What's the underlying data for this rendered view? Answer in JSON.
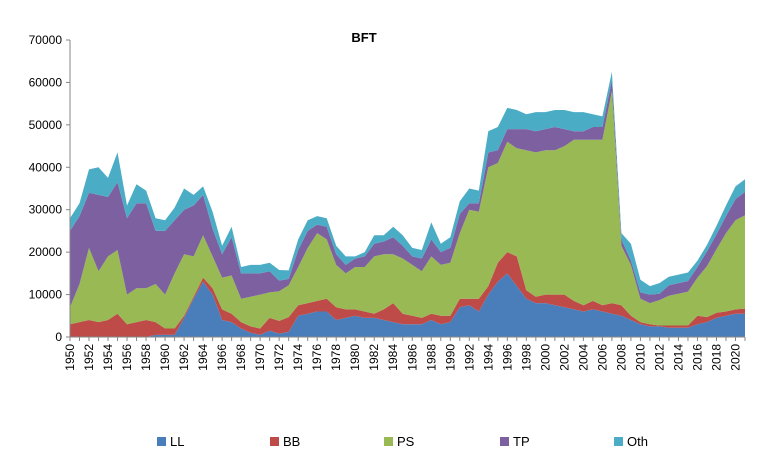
{
  "chart_data": {
    "type": "area",
    "stacked": true,
    "title": "BFT",
    "xlabel": "",
    "ylabel": "",
    "ylim": [
      0,
      70000
    ],
    "yticks": [
      0,
      10000,
      20000,
      30000,
      40000,
      50000,
      60000,
      70000
    ],
    "ytick_labels": [
      "0",
      "10000",
      "20000",
      "30000",
      "40000",
      "50000",
      "60000",
      "70000"
    ],
    "xlim": [
      1950,
      2021
    ],
    "xticks": [
      1950,
      1952,
      1954,
      1956,
      1958,
      1960,
      1962,
      1964,
      1966,
      1968,
      1970,
      1972,
      1974,
      1976,
      1978,
      1980,
      1982,
      1984,
      1986,
      1988,
      1990,
      1992,
      1994,
      1996,
      1998,
      2000,
      2002,
      2004,
      2006,
      2008,
      2010,
      2012,
      2014,
      2016,
      2018,
      2020
    ],
    "xtick_labels": [
      "1950",
      "1952",
      "1954",
      "1956",
      "1958",
      "1960",
      "1962",
      "1964",
      "1966",
      "1968",
      "1970",
      "1972",
      "1974",
      "1976",
      "1978",
      "1980",
      "1982",
      "1984",
      "1986",
      "1988",
      "1990",
      "1992",
      "1994",
      "1996",
      "1998",
      "2000",
      "2002",
      "2004",
      "2006",
      "2008",
      "2010",
      "2012",
      "2014",
      "2016",
      "2018",
      "2020"
    ],
    "grid": false,
    "legend_position": "bottom",
    "x": [
      1950,
      1951,
      1952,
      1953,
      1954,
      1955,
      1956,
      1957,
      1958,
      1959,
      1960,
      1961,
      1962,
      1963,
      1964,
      1965,
      1966,
      1967,
      1968,
      1969,
      1970,
      1971,
      1972,
      1973,
      1974,
      1975,
      1976,
      1977,
      1978,
      1979,
      1980,
      1981,
      1982,
      1983,
      1984,
      1985,
      1986,
      1987,
      1988,
      1989,
      1990,
      1991,
      1992,
      1993,
      1994,
      1995,
      1996,
      1997,
      1998,
      1999,
      2000,
      2001,
      2002,
      2003,
      2004,
      2005,
      2006,
      2007,
      2008,
      2009,
      2010,
      2011,
      2012,
      2013,
      2014,
      2015,
      2016,
      2017,
      2018,
      2019,
      2020,
      2021
    ],
    "series": [
      {
        "name": "LL",
        "color": "#4a7ebb",
        "values": [
          0,
          0,
          0,
          0,
          0,
          0,
          0,
          0,
          0,
          500,
          500,
          500,
          4500,
          9000,
          13000,
          10000,
          4000,
          3500,
          2000,
          1000,
          500,
          1500,
          800,
          1200,
          5000,
          5500,
          6000,
          6000,
          4000,
          4500,
          5000,
          4500,
          4500,
          4000,
          3500,
          3000,
          3000,
          3000,
          4000,
          3000,
          3500,
          7000,
          7500,
          6000,
          10000,
          13000,
          15000,
          12000,
          9000,
          8000,
          8000,
          7500,
          7000,
          6500,
          6000,
          6500,
          6000,
          5500,
          5000,
          4000,
          3000,
          2500,
          2500,
          2200,
          2200,
          2200,
          3000,
          3500,
          4500,
          5000,
          5500,
          5500
        ]
      },
      {
        "name": "BB",
        "color": "#be4b48",
        "values": [
          3000,
          3500,
          4000,
          3500,
          4000,
          5500,
          3000,
          3500,
          4000,
          3000,
          1500,
          1500,
          500,
          500,
          1000,
          1500,
          2500,
          2000,
          1500,
          1500,
          1500,
          3000,
          3000,
          3500,
          2500,
          2500,
          2500,
          3000,
          3000,
          2000,
          1500,
          1500,
          1000,
          2500,
          4500,
          2500,
          2000,
          1500,
          1500,
          2000,
          1500,
          2000,
          1500,
          3000,
          2000,
          4500,
          5000,
          7000,
          2000,
          1500,
          2000,
          2500,
          3000,
          2000,
          1500,
          2000,
          1500,
          2500,
          2500,
          1000,
          500,
          500,
          200,
          500,
          500,
          500,
          2000,
          1200,
          1200,
          1000,
          1000,
          1200
        ]
      },
      {
        "name": "PS",
        "color": "#98b954",
        "values": [
          4000,
          9000,
          17000,
          12000,
          15000,
          15000,
          7000,
          8000,
          7500,
          9000,
          8000,
          13000,
          14500,
          9500,
          10000,
          7500,
          7500,
          9000,
          5500,
          7000,
          8000,
          6000,
          7000,
          7500,
          9000,
          13000,
          16000,
          14000,
          10000,
          8500,
          10000,
          10500,
          13500,
          13000,
          11500,
          13000,
          12000,
          11000,
          13500,
          12000,
          12500,
          15500,
          21000,
          20500,
          28000,
          23500,
          26000,
          25500,
          33000,
          34000,
          34000,
          34000,
          35000,
          38000,
          39000,
          38000,
          39000,
          50000,
          14000,
          12000,
          5500,
          5000,
          6000,
          7000,
          7500,
          8000,
          9000,
          12000,
          15000,
          18500,
          21000,
          22000
        ]
      },
      {
        "name": "TP",
        "color": "#7d60a0",
        "values": [
          18000,
          16000,
          13000,
          18000,
          14000,
          16000,
          18000,
          20000,
          20000,
          12500,
          15000,
          12500,
          10500,
          12000,
          9500,
          6500,
          5500,
          9000,
          6000,
          5500,
          5000,
          5000,
          2500,
          1500,
          4000,
          4000,
          2000,
          3000,
          2500,
          2000,
          2000,
          2500,
          3000,
          3000,
          4000,
          3000,
          2000,
          3000,
          4000,
          3000,
          3500,
          4500,
          1500,
          2000,
          3500,
          3000,
          3000,
          4500,
          5000,
          5000,
          5000,
          5500,
          4000,
          2000,
          2000,
          3000,
          3000,
          2500,
          1500,
          1000,
          1500,
          2000,
          1500,
          2500,
          2500,
          2500,
          2500,
          3500,
          3500,
          4000,
          5000,
          5500
        ]
      },
      {
        "name": "Oth",
        "color": "#4bacc6",
        "values": [
          3000,
          3000,
          5500,
          6500,
          4500,
          7000,
          3000,
          4500,
          3000,
          3000,
          2500,
          3000,
          5000,
          2500,
          2000,
          4000,
          2000,
          2500,
          1500,
          2000,
          2000,
          2000,
          2500,
          2000,
          2500,
          2500,
          2000,
          2000,
          2000,
          2000,
          500,
          1000,
          2000,
          1500,
          2500,
          2500,
          2000,
          2000,
          4000,
          2000,
          2500,
          3000,
          3500,
          3000,
          5000,
          5500,
          5000,
          4500,
          3500,
          4500,
          4000,
          4000,
          4500,
          4500,
          4500,
          3000,
          2500,
          2000,
          1500,
          4000,
          3000,
          2000,
          2500,
          2000,
          2000,
          2000,
          1500,
          1500,
          2000,
          2500,
          3000,
          3000
        ]
      }
    ]
  }
}
